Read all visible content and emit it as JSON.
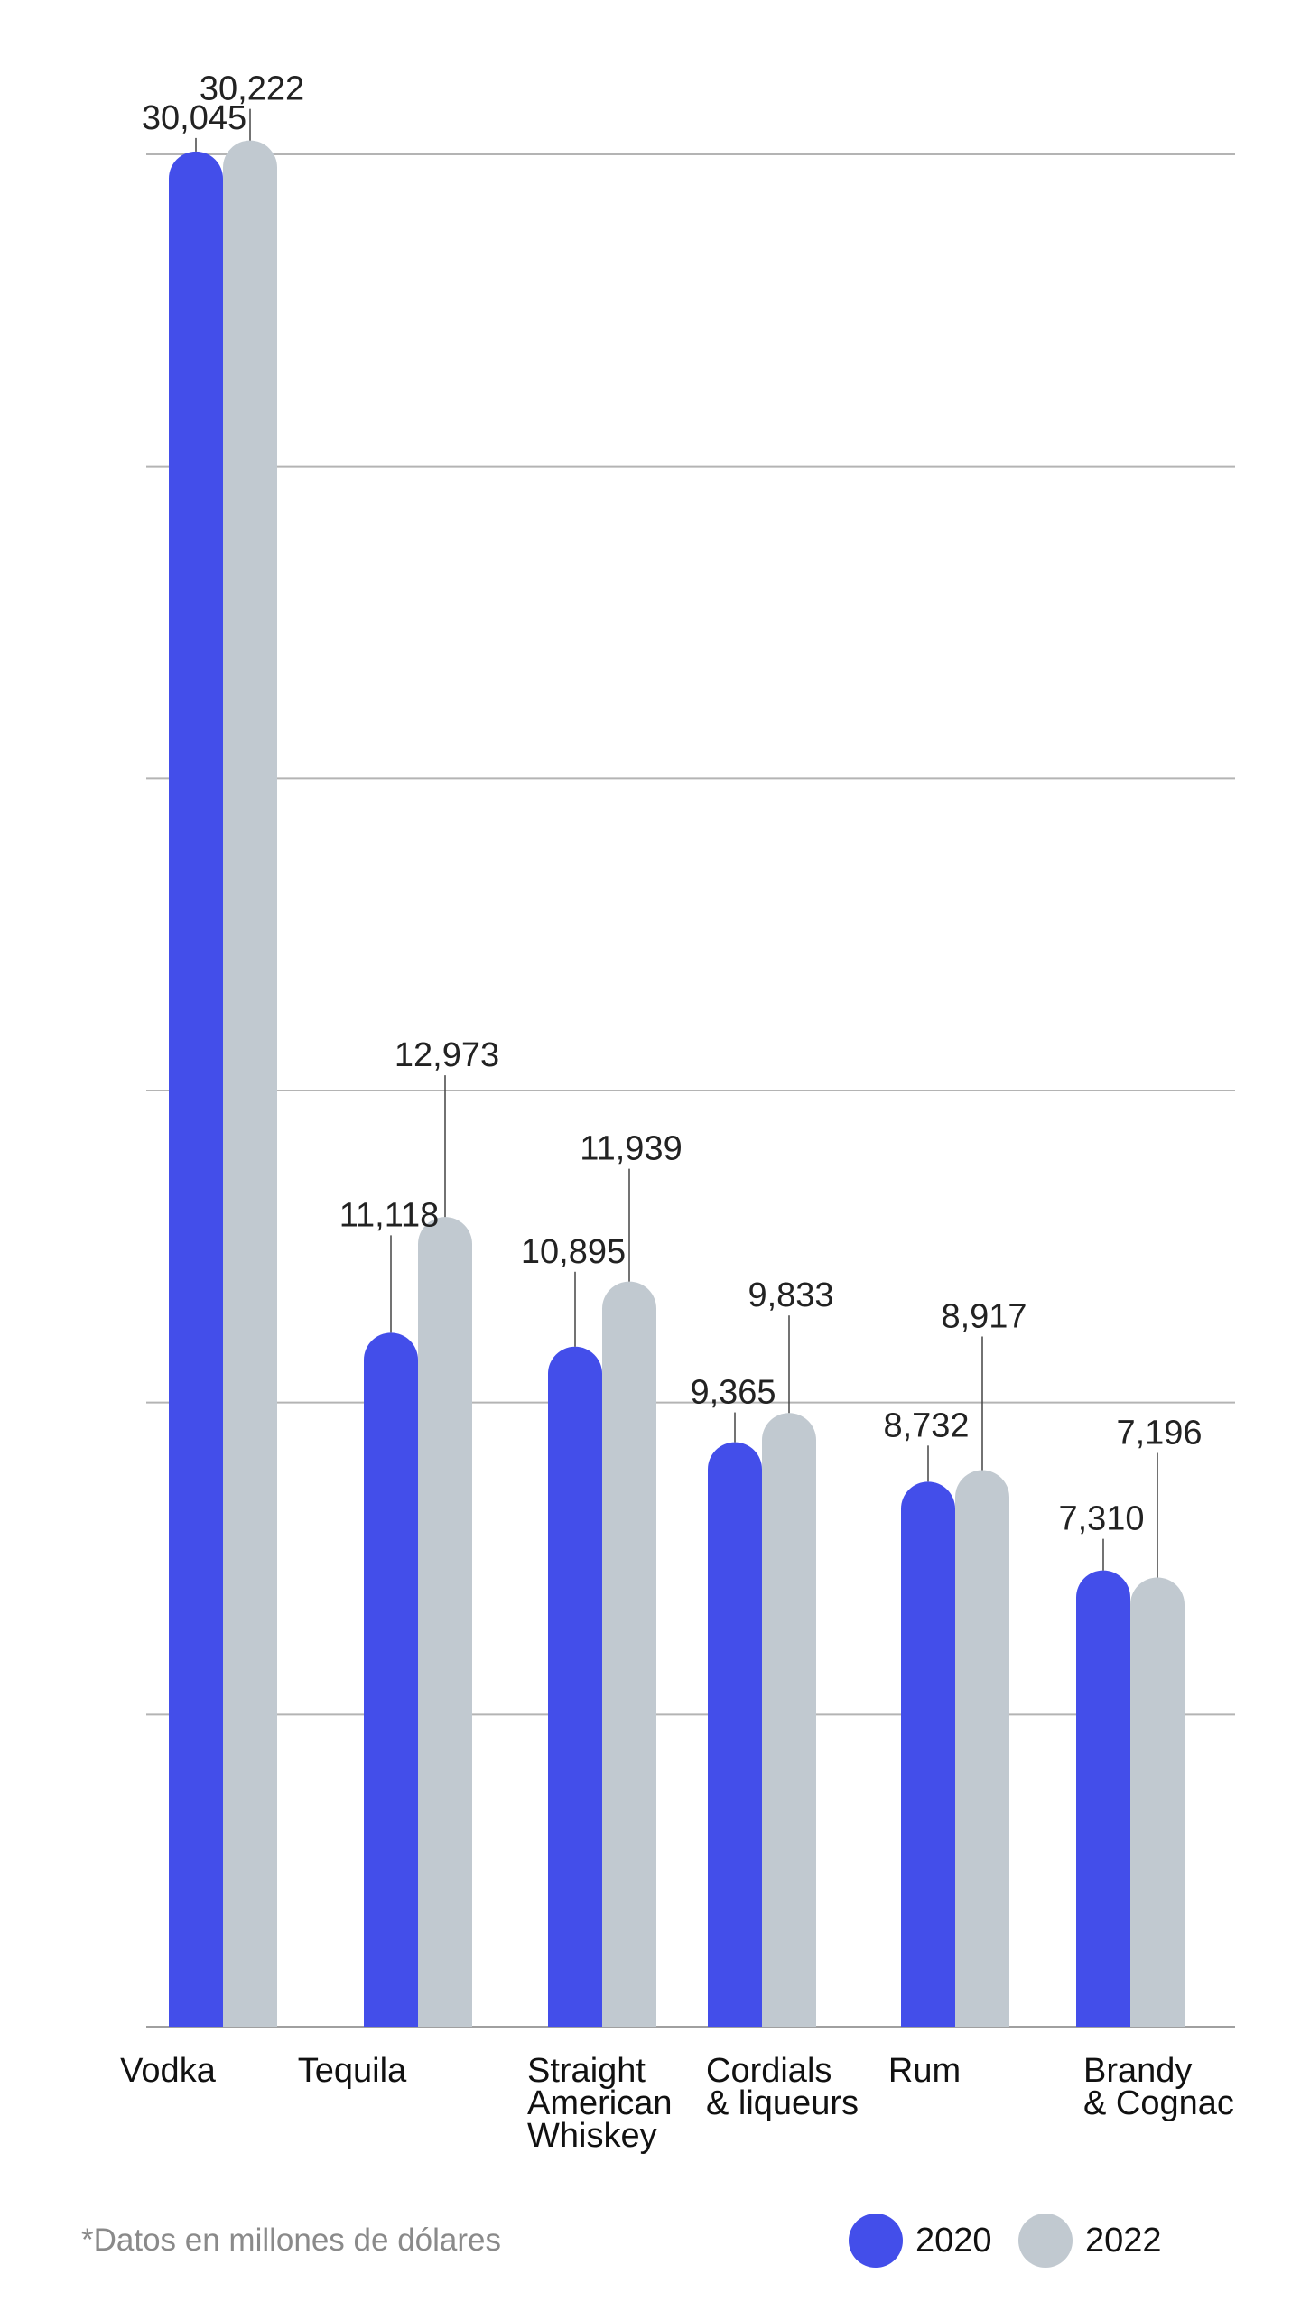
{
  "chart_data": {
    "type": "bar",
    "categories": [
      [
        "Vodka"
      ],
      [
        "Tequila"
      ],
      [
        "Straight",
        "American",
        "Whiskey"
      ],
      [
        "Cordials",
        "& liqueurs"
      ],
      [
        "Rum"
      ],
      [
        "Brandy",
        "& Cognac"
      ]
    ],
    "series": [
      {
        "name": "2020",
        "color": "#434eea",
        "values": [
          30045,
          11118,
          10895,
          9365,
          8732,
          7310
        ],
        "labels": [
          "30,045",
          "11,118",
          "10,895",
          "9,365",
          "8,732",
          "7,310"
        ]
      },
      {
        "name": "2022",
        "color": "#c1c9d0",
        "values": [
          30222,
          12973,
          11939,
          9833,
          8917,
          7196
        ],
        "labels": [
          "30,222",
          "12,973",
          "11,939",
          "9,833",
          "8,917",
          "7,196"
        ]
      }
    ],
    "ylim": [
      0,
      30000
    ],
    "grid": true,
    "legend_position": "bottom-right",
    "note": "*Datos en millones de dólares"
  }
}
